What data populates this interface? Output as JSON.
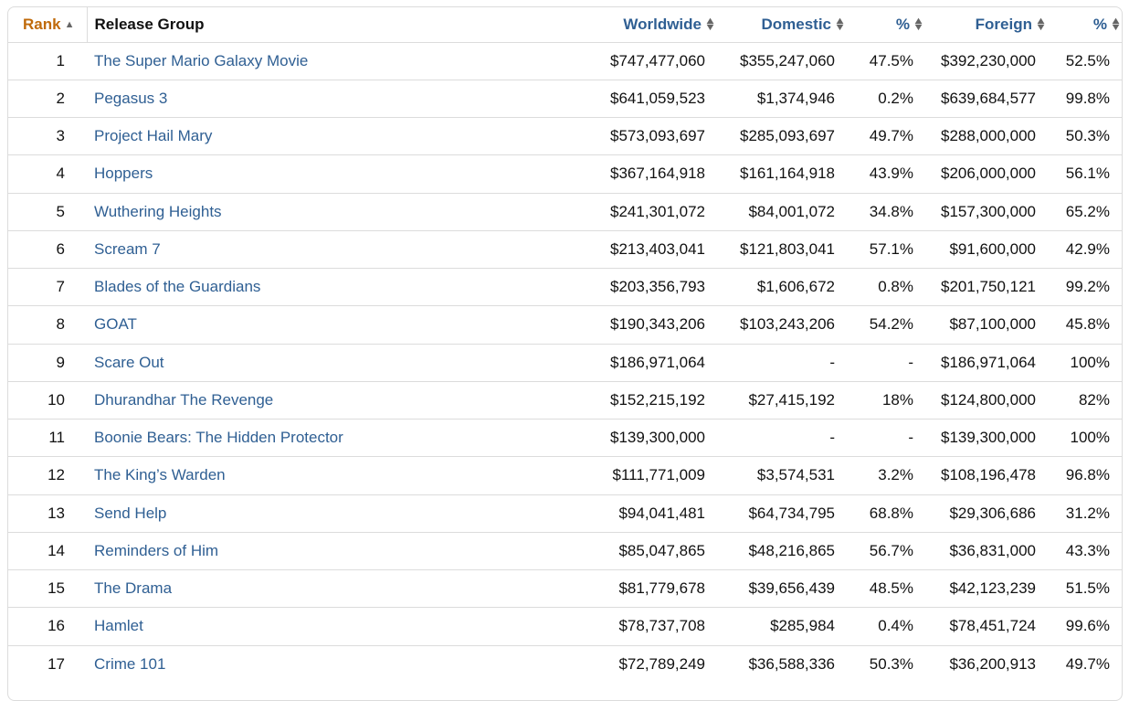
{
  "table": {
    "headers": {
      "rank": "Rank",
      "release_group": "Release Group",
      "worldwide": "Worldwide",
      "domestic": "Domestic",
      "domestic_pct": "%",
      "foreign": "Foreign",
      "foreign_pct": "%"
    },
    "sort": {
      "column": "rank",
      "direction": "ascending"
    },
    "rows": [
      {
        "rank": "1",
        "title": "The Super Mario Galaxy Movie",
        "worldwide": "$747,477,060",
        "domestic": "$355,247,060",
        "domestic_pct": "47.5%",
        "foreign": "$392,230,000",
        "foreign_pct": "52.5%"
      },
      {
        "rank": "2",
        "title": "Pegasus 3",
        "worldwide": "$641,059,523",
        "domestic": "$1,374,946",
        "domestic_pct": "0.2%",
        "foreign": "$639,684,577",
        "foreign_pct": "99.8%"
      },
      {
        "rank": "3",
        "title": "Project Hail Mary",
        "worldwide": "$573,093,697",
        "domestic": "$285,093,697",
        "domestic_pct": "49.7%",
        "foreign": "$288,000,000",
        "foreign_pct": "50.3%"
      },
      {
        "rank": "4",
        "title": "Hoppers",
        "worldwide": "$367,164,918",
        "domestic": "$161,164,918",
        "domestic_pct": "43.9%",
        "foreign": "$206,000,000",
        "foreign_pct": "56.1%"
      },
      {
        "rank": "5",
        "title": "Wuthering Heights",
        "worldwide": "$241,301,072",
        "domestic": "$84,001,072",
        "domestic_pct": "34.8%",
        "foreign": "$157,300,000",
        "foreign_pct": "65.2%"
      },
      {
        "rank": "6",
        "title": "Scream 7",
        "worldwide": "$213,403,041",
        "domestic": "$121,803,041",
        "domestic_pct": "57.1%",
        "foreign": "$91,600,000",
        "foreign_pct": "42.9%"
      },
      {
        "rank": "7",
        "title": "Blades of the Guardians",
        "worldwide": "$203,356,793",
        "domestic": "$1,606,672",
        "domestic_pct": "0.8%",
        "foreign": "$201,750,121",
        "foreign_pct": "99.2%"
      },
      {
        "rank": "8",
        "title": "GOAT",
        "worldwide": "$190,343,206",
        "domestic": "$103,243,206",
        "domestic_pct": "54.2%",
        "foreign": "$87,100,000",
        "foreign_pct": "45.8%"
      },
      {
        "rank": "9",
        "title": "Scare Out",
        "worldwide": "$186,971,064",
        "domestic": "-",
        "domestic_pct": "-",
        "foreign": "$186,971,064",
        "foreign_pct": "100%"
      },
      {
        "rank": "10",
        "title": "Dhurandhar The Revenge",
        "worldwide": "$152,215,192",
        "domestic": "$27,415,192",
        "domestic_pct": "18%",
        "foreign": "$124,800,000",
        "foreign_pct": "82%"
      },
      {
        "rank": "11",
        "title": "Boonie Bears: The Hidden Protector",
        "worldwide": "$139,300,000",
        "domestic": "-",
        "domestic_pct": "-",
        "foreign": "$139,300,000",
        "foreign_pct": "100%"
      },
      {
        "rank": "12",
        "title": "The King’s Warden",
        "worldwide": "$111,771,009",
        "domestic": "$3,574,531",
        "domestic_pct": "3.2%",
        "foreign": "$108,196,478",
        "foreign_pct": "96.8%"
      },
      {
        "rank": "13",
        "title": "Send Help",
        "worldwide": "$94,041,481",
        "domestic": "$64,734,795",
        "domestic_pct": "68.8%",
        "foreign": "$29,306,686",
        "foreign_pct": "31.2%"
      },
      {
        "rank": "14",
        "title": "Reminders of Him",
        "worldwide": "$85,047,865",
        "domestic": "$48,216,865",
        "domestic_pct": "56.7%",
        "foreign": "$36,831,000",
        "foreign_pct": "43.3%"
      },
      {
        "rank": "15",
        "title": "The Drama",
        "worldwide": "$81,779,678",
        "domestic": "$39,656,439",
        "domestic_pct": "48.5%",
        "foreign": "$42,123,239",
        "foreign_pct": "51.5%"
      },
      {
        "rank": "16",
        "title": "Hamlet",
        "worldwide": "$78,737,708",
        "domestic": "$285,984",
        "domestic_pct": "0.4%",
        "foreign": "$78,451,724",
        "foreign_pct": "99.6%"
      },
      {
        "rank": "17",
        "title": "Crime 101",
        "worldwide": "$72,789,249",
        "domestic": "$36,588,336",
        "domestic_pct": "50.3%",
        "foreign": "$36,200,913",
        "foreign_pct": "49.7%"
      }
    ]
  },
  "colors": {
    "link": "#2f5f93",
    "active_sort_header": "#c06a0a",
    "border": "#dcdcdc",
    "text": "#111111"
  },
  "icons": {
    "sort_ascending": "caret-up-icon",
    "sortable": "up-down-caret-icon"
  }
}
